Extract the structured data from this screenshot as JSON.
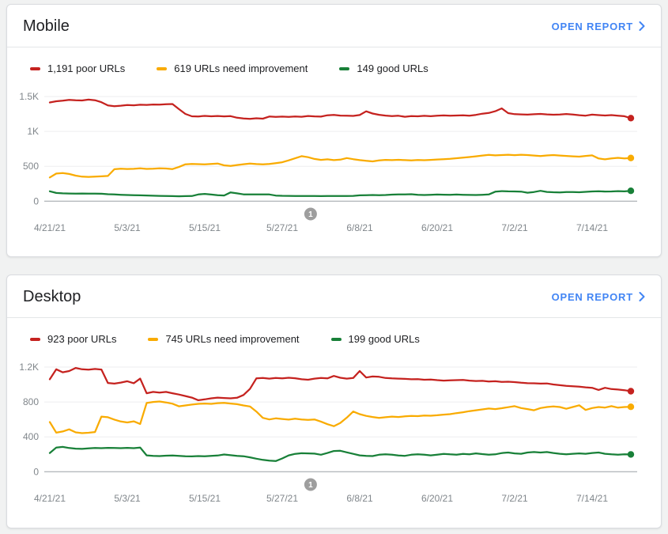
{
  "colors": {
    "poor": "#C5221F",
    "needs_improvement": "#F9AB00",
    "good": "#188038",
    "link": "#4285F4",
    "grid": "#EDEEEF",
    "baseline": "#9AA0A6",
    "axis_text": "#80868B",
    "annotation_marker": "#9E9E9E"
  },
  "cards": [
    {
      "title": "Mobile",
      "open_report_label": "OPEN REPORT",
      "legend": [
        {
          "label": "1,191 poor URLs",
          "color_key": "poor"
        },
        {
          "label": "619 URLs need improvement",
          "color_key": "needs_improvement"
        },
        {
          "label": "149 good URLs",
          "color_key": "good"
        }
      ]
    },
    {
      "title": "Desktop",
      "open_report_label": "OPEN REPORT",
      "legend": [
        {
          "label": "923 poor URLs",
          "color_key": "poor"
        },
        {
          "label": "745 URLs need improvement",
          "color_key": "needs_improvement"
        },
        {
          "label": "199 good URLs",
          "color_key": "good"
        }
      ]
    }
  ],
  "chart_data": [
    {
      "type": "line",
      "title": "Mobile",
      "x_tick_labels": [
        "4/21/21",
        "5/3/21",
        "5/15/21",
        "5/27/21",
        "6/8/21",
        "6/20/21",
        "7/2/21",
        "7/14/21"
      ],
      "x_tick_days": [
        0,
        12,
        24,
        36,
        48,
        60,
        72,
        84
      ],
      "x_range_days": [
        0,
        90
      ],
      "y_ticks": [
        0,
        500,
        1000,
        1500
      ],
      "y_tick_labels": [
        "0",
        "500",
        "1K",
        "1.5K"
      ],
      "ylim": [
        0,
        1500
      ],
      "grid": true,
      "legend_position": "top",
      "annotation": {
        "label": "1",
        "day": 40.4
      },
      "series": [
        {
          "name": "poor URLs",
          "color_key": "poor",
          "end_value": 1191,
          "values": [
            1415,
            1432,
            1441,
            1452,
            1447,
            1443,
            1456,
            1447,
            1418,
            1372,
            1362,
            1369,
            1378,
            1374,
            1382,
            1380,
            1386,
            1383,
            1390,
            1392,
            1320,
            1250,
            1216,
            1214,
            1222,
            1217,
            1221,
            1215,
            1219,
            1196,
            1186,
            1180,
            1188,
            1183,
            1213,
            1208,
            1212,
            1208,
            1213,
            1210,
            1221,
            1215,
            1212,
            1231,
            1237,
            1227,
            1225,
            1222,
            1235,
            1288,
            1256,
            1238,
            1227,
            1220,
            1224,
            1210,
            1220,
            1217,
            1223,
            1218,
            1224,
            1229,
            1225,
            1228,
            1230,
            1226,
            1237,
            1254,
            1264,
            1289,
            1330,
            1262,
            1247,
            1244,
            1240,
            1246,
            1250,
            1244,
            1239,
            1243,
            1249,
            1241,
            1232,
            1226,
            1240,
            1234,
            1228,
            1234,
            1226,
            1218,
            1191
          ]
        },
        {
          "name": "URLs need improvement",
          "color_key": "needs_improvement",
          "end_value": 619,
          "values": [
            340,
            396,
            402,
            390,
            366,
            352,
            348,
            352,
            356,
            362,
            458,
            465,
            462,
            464,
            470,
            463,
            466,
            472,
            468,
            460,
            490,
            528,
            534,
            531,
            528,
            534,
            540,
            514,
            505,
            518,
            530,
            538,
            532,
            528,
            534,
            545,
            558,
            585,
            615,
            645,
            630,
            605,
            592,
            600,
            588,
            595,
            618,
            602,
            588,
            578,
            570,
            584,
            592,
            588,
            593,
            589,
            584,
            590,
            587,
            592,
            597,
            602,
            608,
            616,
            624,
            633,
            643,
            654,
            664,
            656,
            661,
            666,
            660,
            666,
            661,
            654,
            647,
            655,
            661,
            654,
            649,
            643,
            638,
            649,
            656,
            612,
            600,
            612,
            621,
            613,
            619
          ]
        },
        {
          "name": "good URLs",
          "color_key": "good",
          "end_value": 149,
          "values": [
            142,
            118,
            112,
            110,
            109,
            110,
            108,
            109,
            107,
            100,
            96,
            92,
            88,
            86,
            84,
            82,
            78,
            76,
            74,
            72,
            70,
            72,
            74,
            96,
            104,
            95,
            86,
            82,
            126,
            112,
            98,
            96,
            98,
            97,
            96,
            80,
            77,
            76,
            75,
            74,
            75,
            74,
            73,
            74,
            75,
            74,
            75,
            76,
            84,
            86,
            88,
            86,
            88,
            94,
            98,
            96,
            100,
            92,
            88,
            92,
            95,
            93,
            91,
            95,
            92,
            90,
            89,
            92,
            96,
            136,
            144,
            141,
            139,
            137,
            121,
            131,
            149,
            133,
            128,
            126,
            130,
            132,
            128,
            134,
            140,
            143,
            138,
            140,
            144,
            141,
            149
          ]
        }
      ]
    },
    {
      "type": "line",
      "title": "Desktop",
      "x_tick_labels": [
        "4/21/21",
        "5/3/21",
        "5/15/21",
        "5/27/21",
        "6/8/21",
        "6/20/21",
        "7/2/21",
        "7/14/21"
      ],
      "x_tick_days": [
        0,
        12,
        24,
        36,
        48,
        60,
        72,
        84
      ],
      "x_range_days": [
        0,
        90
      ],
      "y_ticks": [
        0,
        400,
        800,
        1200
      ],
      "y_tick_labels": [
        "0",
        "400",
        "800",
        "1.2K"
      ],
      "ylim": [
        0,
        1200
      ],
      "grid": true,
      "legend_position": "top",
      "annotation": {
        "label": "1",
        "day": 40.4
      },
      "series": [
        {
          "name": "poor URLs",
          "color_key": "poor",
          "end_value": 923,
          "values": [
            1060,
            1175,
            1140,
            1155,
            1190,
            1175,
            1170,
            1178,
            1172,
            1018,
            1010,
            1022,
            1038,
            1015,
            1068,
            900,
            915,
            908,
            915,
            900,
            885,
            868,
            850,
            820,
            830,
            842,
            850,
            845,
            842,
            848,
            880,
            950,
            1070,
            1075,
            1068,
            1075,
            1070,
            1078,
            1072,
            1060,
            1055,
            1068,
            1075,
            1070,
            1098,
            1078,
            1068,
            1075,
            1155,
            1080,
            1092,
            1088,
            1075,
            1070,
            1068,
            1065,
            1060,
            1062,
            1055,
            1058,
            1050,
            1045,
            1048,
            1050,
            1052,
            1045,
            1040,
            1042,
            1035,
            1038,
            1030,
            1032,
            1028,
            1020,
            1015,
            1014,
            1010,
            1012,
            1000,
            992,
            985,
            980,
            975,
            968,
            962,
            938,
            962,
            948,
            942,
            935,
            923
          ]
        },
        {
          "name": "URLs need improvement",
          "color_key": "needs_improvement",
          "end_value": 745,
          "values": [
            570,
            448,
            462,
            486,
            452,
            443,
            447,
            455,
            632,
            625,
            598,
            576,
            565,
            578,
            548,
            788,
            800,
            805,
            795,
            780,
            750,
            760,
            770,
            778,
            782,
            778,
            786,
            790,
            782,
            775,
            760,
            748,
            690,
            618,
            600,
            612,
            605,
            598,
            608,
            600,
            595,
            600,
            575,
            545,
            522,
            560,
            620,
            690,
            660,
            640,
            628,
            618,
            625,
            632,
            628,
            635,
            640,
            638,
            645,
            642,
            648,
            655,
            660,
            672,
            682,
            695,
            705,
            715,
            725,
            718,
            728,
            740,
            752,
            730,
            718,
            705,
            730,
            742,
            748,
            742,
            722,
            742,
            762,
            708,
            730,
            742,
            736,
            752,
            735,
            742,
            745
          ]
        },
        {
          "name": "good URLs",
          "color_key": "good",
          "end_value": 199,
          "values": [
            215,
            278,
            285,
            272,
            265,
            262,
            268,
            272,
            270,
            274,
            272,
            270,
            274,
            270,
            278,
            188,
            182,
            180,
            184,
            186,
            182,
            178,
            176,
            180,
            178,
            182,
            186,
            198,
            190,
            182,
            178,
            165,
            150,
            136,
            128,
            122,
            152,
            188,
            205,
            212,
            210,
            208,
            195,
            215,
            238,
            240,
            222,
            205,
            188,
            182,
            180,
            195,
            200,
            196,
            186,
            182,
            195,
            200,
            196,
            188,
            196,
            205,
            200,
            196,
            205,
            200,
            210,
            202,
            196,
            200,
            214,
            220,
            210,
            206,
            220,
            226,
            220,
            226,
            215,
            206,
            200,
            206,
            210,
            206,
            215,
            220,
            206,
            200,
            196,
            200,
            199
          ]
        }
      ]
    }
  ]
}
